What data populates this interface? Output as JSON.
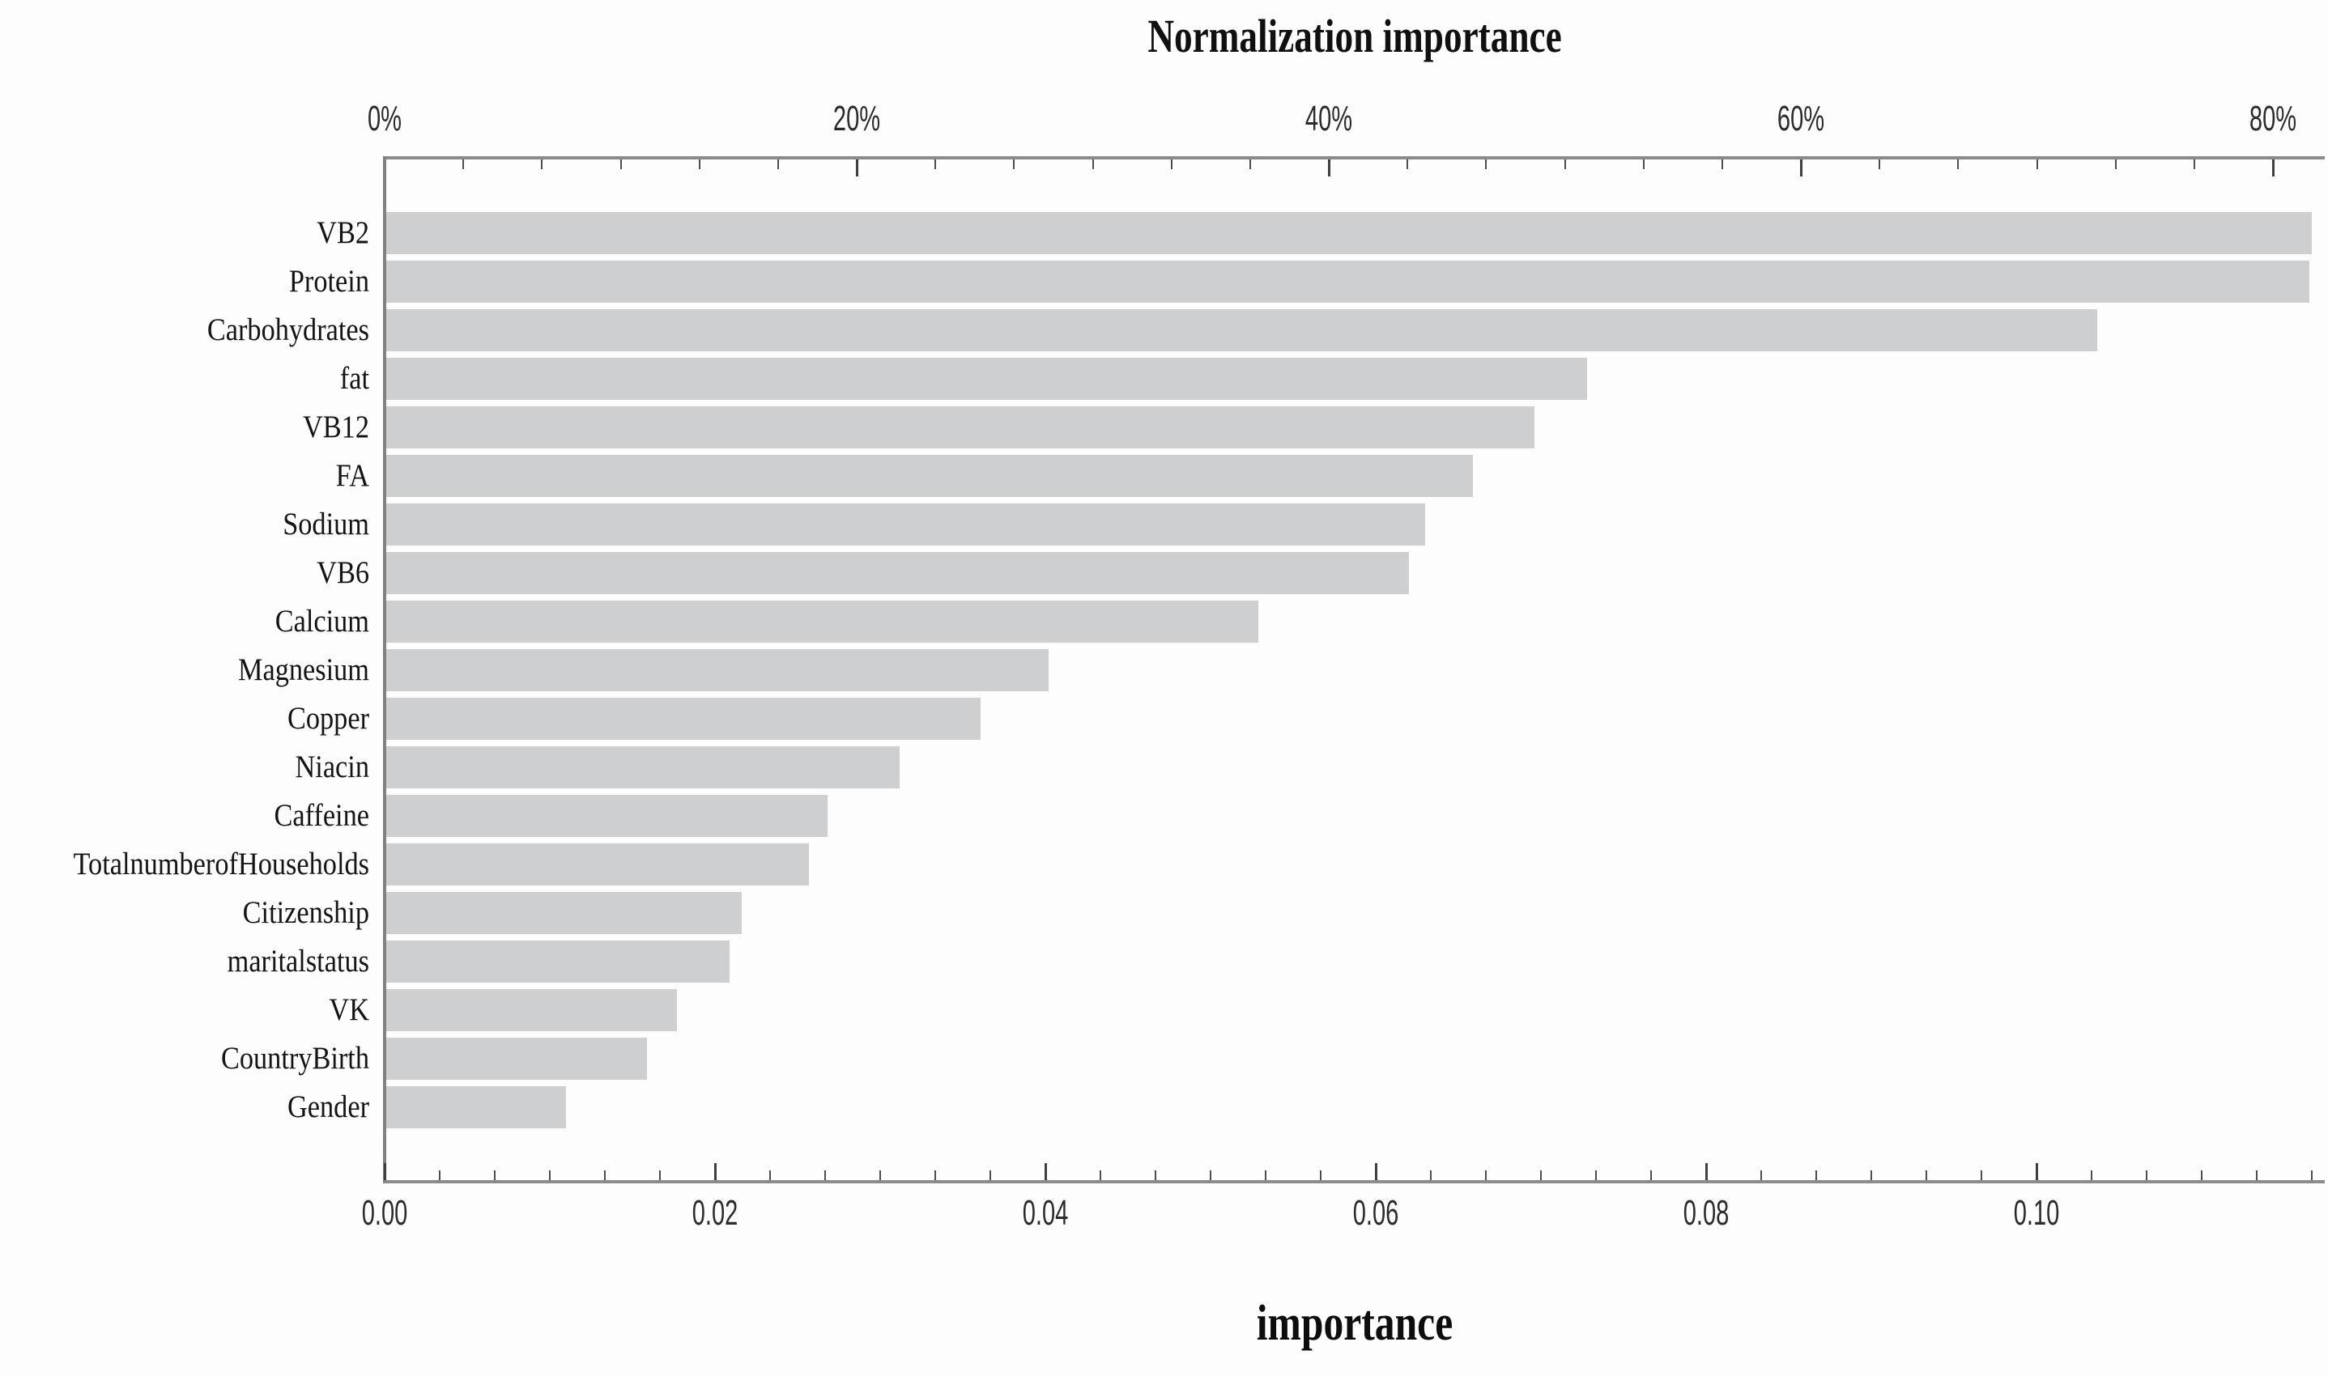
{
  "figure": {
    "title": "Normalization importance",
    "footer_axis_label": "importance"
  },
  "chart_data": {
    "type": "bar",
    "orientation": "horizontal",
    "title": "Normalization importance",
    "grid": false,
    "legend": false,
    "bar_color": "#cdcfd0",
    "axis_color": "#898c8e",
    "text_color": "#141414",
    "categories": [
      "VB2",
      "Protein",
      "Carbohydrates",
      "fat",
      "VB12",
      "FA",
      "Sodium",
      "VB6",
      "Calcium",
      "Magnesium",
      "Copper",
      "Niacin",
      "Caffeine",
      "TotalnumberofHouseholds",
      "Citizenship",
      "maritalstatus",
      "VK",
      "CountryBirth",
      "Gender"
    ],
    "series": [
      {
        "name": "importance",
        "axis": "bottom",
        "values": [
          0.1166,
          0.1164,
          0.1036,
          0.0727,
          0.0695,
          0.0658,
          0.0629,
          0.0619,
          0.0528,
          0.0401,
          0.036,
          0.0311,
          0.0267,
          0.0256,
          0.0215,
          0.0208,
          0.0176,
          0.0158,
          0.0109
        ]
      },
      {
        "name": "normalized importance (%)",
        "axis": "top",
        "values": [
          81.6,
          81.4,
          72.5,
          50.9,
          48.6,
          46.0,
          44.0,
          43.3,
          36.9,
          28.1,
          25.2,
          21.7,
          18.7,
          17.9,
          15.0,
          14.6,
          12.3,
          11.0,
          7.6
        ]
      }
    ],
    "top_axis": {
      "tick_labels": [
        "0%",
        "20%",
        "40%",
        "60%",
        "80%"
      ],
      "tick_values": [
        0,
        20,
        40,
        60,
        80
      ],
      "range": [
        0,
        82.2
      ],
      "minor_ticks_per_interval": 5
    },
    "bottom_axis": {
      "label": "importance",
      "tick_labels": [
        "0.00",
        "0.02",
        "0.04",
        "0.06",
        "0.08",
        "0.10"
      ],
      "tick_values": [
        0,
        0.02,
        0.04,
        0.06,
        0.08,
        0.1
      ],
      "range": [
        0,
        0.1175
      ],
      "minor_ticks_per_interval": 5
    }
  }
}
